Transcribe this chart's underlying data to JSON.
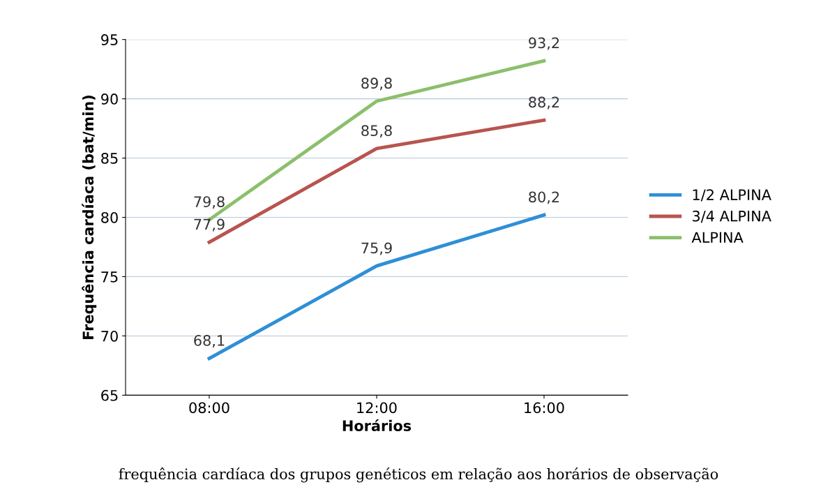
{
  "chart_data": {
    "type": "line",
    "xlabel": "Horários",
    "ylabel": "Frequência cardíaca (bat/min)",
    "categories": [
      "08:00",
      "12:00",
      "16:00"
    ],
    "series": [
      {
        "name": "1/2 ALPINA",
        "color": "#2e8fd6",
        "values": [
          68.1,
          75.9,
          80.2
        ],
        "value_labels": [
          "68,1",
          "75,9",
          "80,2"
        ]
      },
      {
        "name": "3/4 ALPINA",
        "color": "#b85450",
        "values": [
          77.9,
          85.8,
          88.2
        ],
        "value_labels": [
          "77,9",
          "85,8",
          "88,2"
        ]
      },
      {
        "name": "ALPINA",
        "color": "#8cbf6c",
        "values": [
          79.8,
          89.8,
          93.2
        ],
        "value_labels": [
          "79,8",
          "89,8",
          "93,2"
        ]
      }
    ],
    "ylim": [
      65,
      95
    ],
    "yticks": [
      65,
      70,
      75,
      80,
      85,
      90,
      95
    ],
    "grid": "y",
    "legend": "right",
    "marker": "none",
    "annotations": [
      "frequência cardíaca dos grupos genéticos em relação aos horários de observação"
    ]
  }
}
